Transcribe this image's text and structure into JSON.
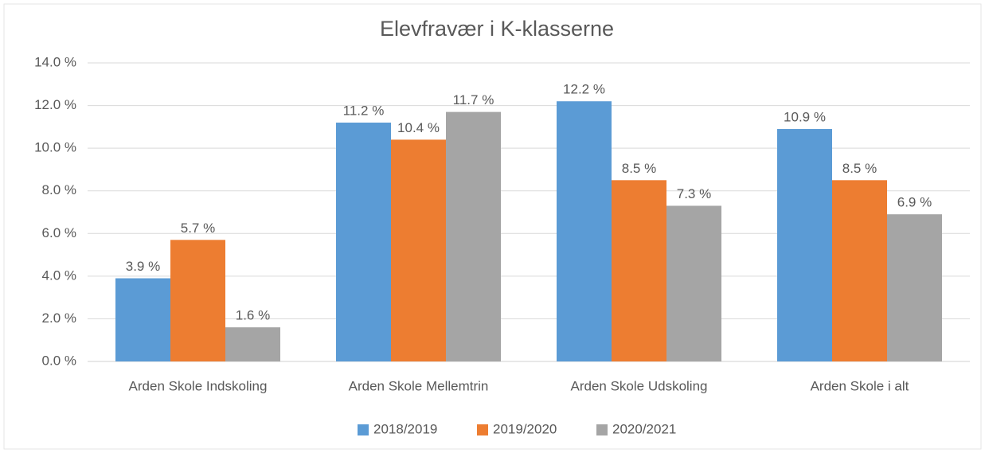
{
  "chart_data": {
    "type": "bar",
    "title": "Elevfravær i K-klasserne",
    "categories": [
      "Arden Skole Indskoling",
      "Arden Skole Mellemtrin",
      "Arden Skole Udskoling",
      "Arden Skole i alt"
    ],
    "series": [
      {
        "name": "2018/2019",
        "color": "#5b9bd5",
        "values": [
          3.9,
          11.2,
          12.2,
          10.9
        ],
        "value_labels": [
          "3.9 %",
          "11.2 %",
          "12.2 %",
          "10.9 %"
        ]
      },
      {
        "name": "2019/2020",
        "color": "#ed7d31",
        "values": [
          5.7,
          10.4,
          8.5,
          8.5
        ],
        "value_labels": [
          "5.7 %",
          "10.4 %",
          "8.5 %",
          "8.5 %"
        ]
      },
      {
        "name": "2020/2021",
        "color": "#a5a5a5",
        "values": [
          1.6,
          11.7,
          7.3,
          6.9
        ],
        "value_labels": [
          "1.6 %",
          "11.7 %",
          "7.3 %",
          "6.9 %"
        ]
      }
    ],
    "ylim": [
      0,
      14
    ],
    "yticks": [
      {
        "value": 0,
        "label": "0.0 %"
      },
      {
        "value": 2,
        "label": "2.0 %"
      },
      {
        "value": 4,
        "label": "4.0 %"
      },
      {
        "value": 6,
        "label": "6.0 %"
      },
      {
        "value": 8,
        "label": "8.0 %"
      },
      {
        "value": 10,
        "label": "10.0 %"
      },
      {
        "value": 12,
        "label": "12.0 %"
      },
      {
        "value": 14,
        "label": "14.0 %"
      }
    ],
    "grid": true,
    "legend": "bottom"
  }
}
